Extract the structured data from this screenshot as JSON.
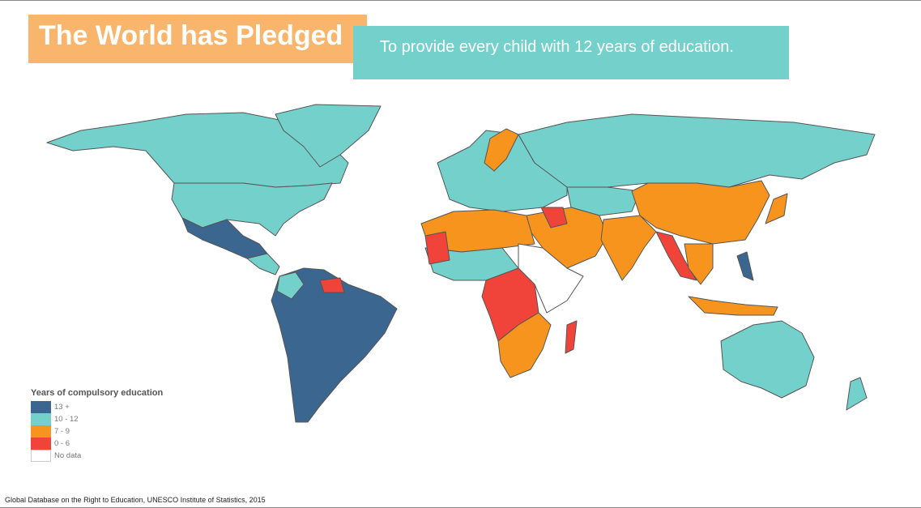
{
  "header": {
    "title": "The World has Pledged",
    "subtitle": "To provide every child with 12 years of education."
  },
  "legend": {
    "title": "Years of compulsory education",
    "items": [
      {
        "label": "13 +",
        "color": "#3a668f"
      },
      {
        "label": "10 - 12",
        "color": "#73d0cb"
      },
      {
        "label": "7 - 9",
        "color": "#f7941d"
      },
      {
        "label": "0 - 6",
        "color": "#f0443a"
      },
      {
        "label": "No data",
        "color": "#ffffff"
      }
    ]
  },
  "source": "Global Database on the Right to Education, UNESCO Institute of Statistics, 2015"
}
